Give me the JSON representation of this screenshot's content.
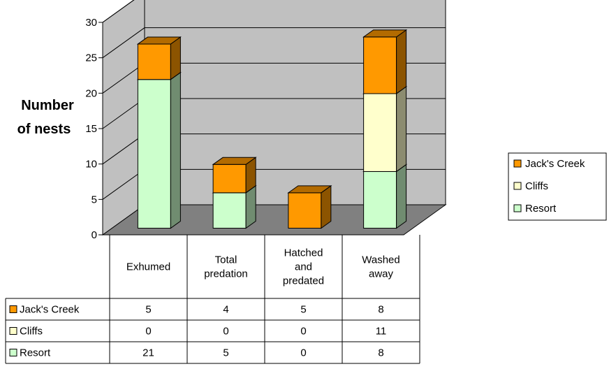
{
  "chart_data": {
    "type": "bar",
    "stacked": true,
    "three_d": true,
    "title": "",
    "xlabel": "",
    "ylabel_lines": [
      "Number",
      "of nests"
    ],
    "ylim": [
      0,
      30
    ],
    "yticks": [
      0,
      5,
      10,
      15,
      20,
      25,
      30
    ],
    "grid": true,
    "legend_position": "right",
    "categories": [
      [
        "Exhumed"
      ],
      [
        "Total",
        "predation"
      ],
      [
        "Hatched",
        "and",
        "predated"
      ],
      [
        "Washed",
        "away"
      ]
    ],
    "series": [
      {
        "name": "Resort",
        "values": [
          21,
          5,
          0,
          8
        ],
        "color": "#ccffcc"
      },
      {
        "name": "Cliffs",
        "values": [
          0,
          0,
          0,
          11
        ],
        "color": "#ffffcc"
      },
      {
        "name": "Jack's Creek",
        "values": [
          5,
          4,
          5,
          8
        ],
        "color": "#ff9900"
      }
    ],
    "legend_order": [
      "Jack's Creek",
      "Cliffs",
      "Resort"
    ],
    "table_row_order": [
      "Jack's Creek",
      "Cliffs",
      "Resort"
    ],
    "colors": {
      "wall": "#c0c0c0",
      "floor": "#808080",
      "grid": "#000000",
      "bar_edge": "#000000"
    }
  }
}
